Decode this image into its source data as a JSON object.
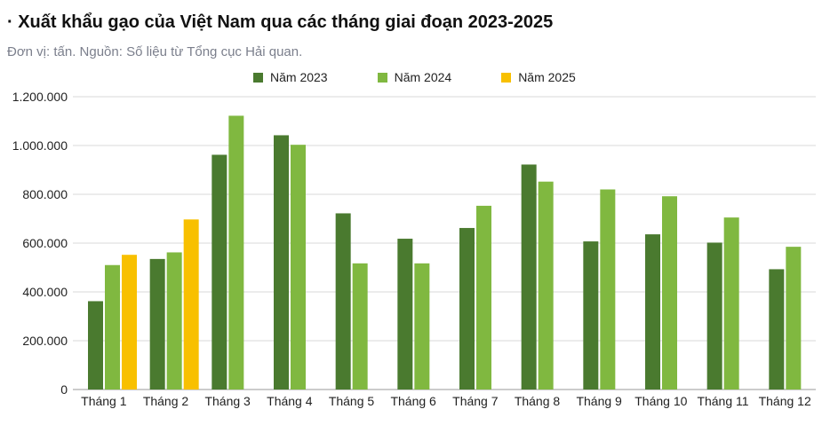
{
  "title": "· Xuất khẩu gạo của Việt Nam qua các tháng giai đoạn 2023-2025",
  "subtitle": "Đơn vị: tấn. Nguồn: Số liệu từ Tổng cục Hải quan.",
  "chart_data": {
    "type": "bar",
    "categories": [
      "Tháng 1",
      "Tháng 2",
      "Tháng 3",
      "Tháng 4",
      "Tháng 5",
      "Tháng 6",
      "Tháng 7",
      "Tháng 8",
      "Tháng 9",
      "Tháng 10",
      "Tháng 11",
      "Tháng 12"
    ],
    "series": [
      {
        "name": "Năm 2023",
        "color": "#4a7a2f",
        "values": [
          362000,
          535000,
          962000,
          1042000,
          722000,
          618000,
          662000,
          922000,
          607000,
          636000,
          602000,
          493000
        ]
      },
      {
        "name": "Năm 2024",
        "color": "#80b840",
        "values": [
          510000,
          562000,
          1122000,
          1003000,
          517000,
          517000,
          753000,
          852000,
          820000,
          792000,
          705000,
          585000
        ]
      },
      {
        "name": "Năm 2025",
        "color": "#f8c000",
        "values": [
          552000,
          697000,
          null,
          null,
          null,
          null,
          null,
          null,
          null,
          null,
          null,
          null
        ]
      }
    ],
    "ylim": [
      0,
      1200000
    ],
    "yticks": [
      0,
      200000,
      400000,
      600000,
      800000,
      1000000,
      1200000
    ],
    "ytick_labels": [
      "0",
      "200.000",
      "400.000",
      "600.000",
      "800.000",
      "1.000.000",
      "1.200.000"
    ],
    "grid": true,
    "legend_position": "top"
  }
}
